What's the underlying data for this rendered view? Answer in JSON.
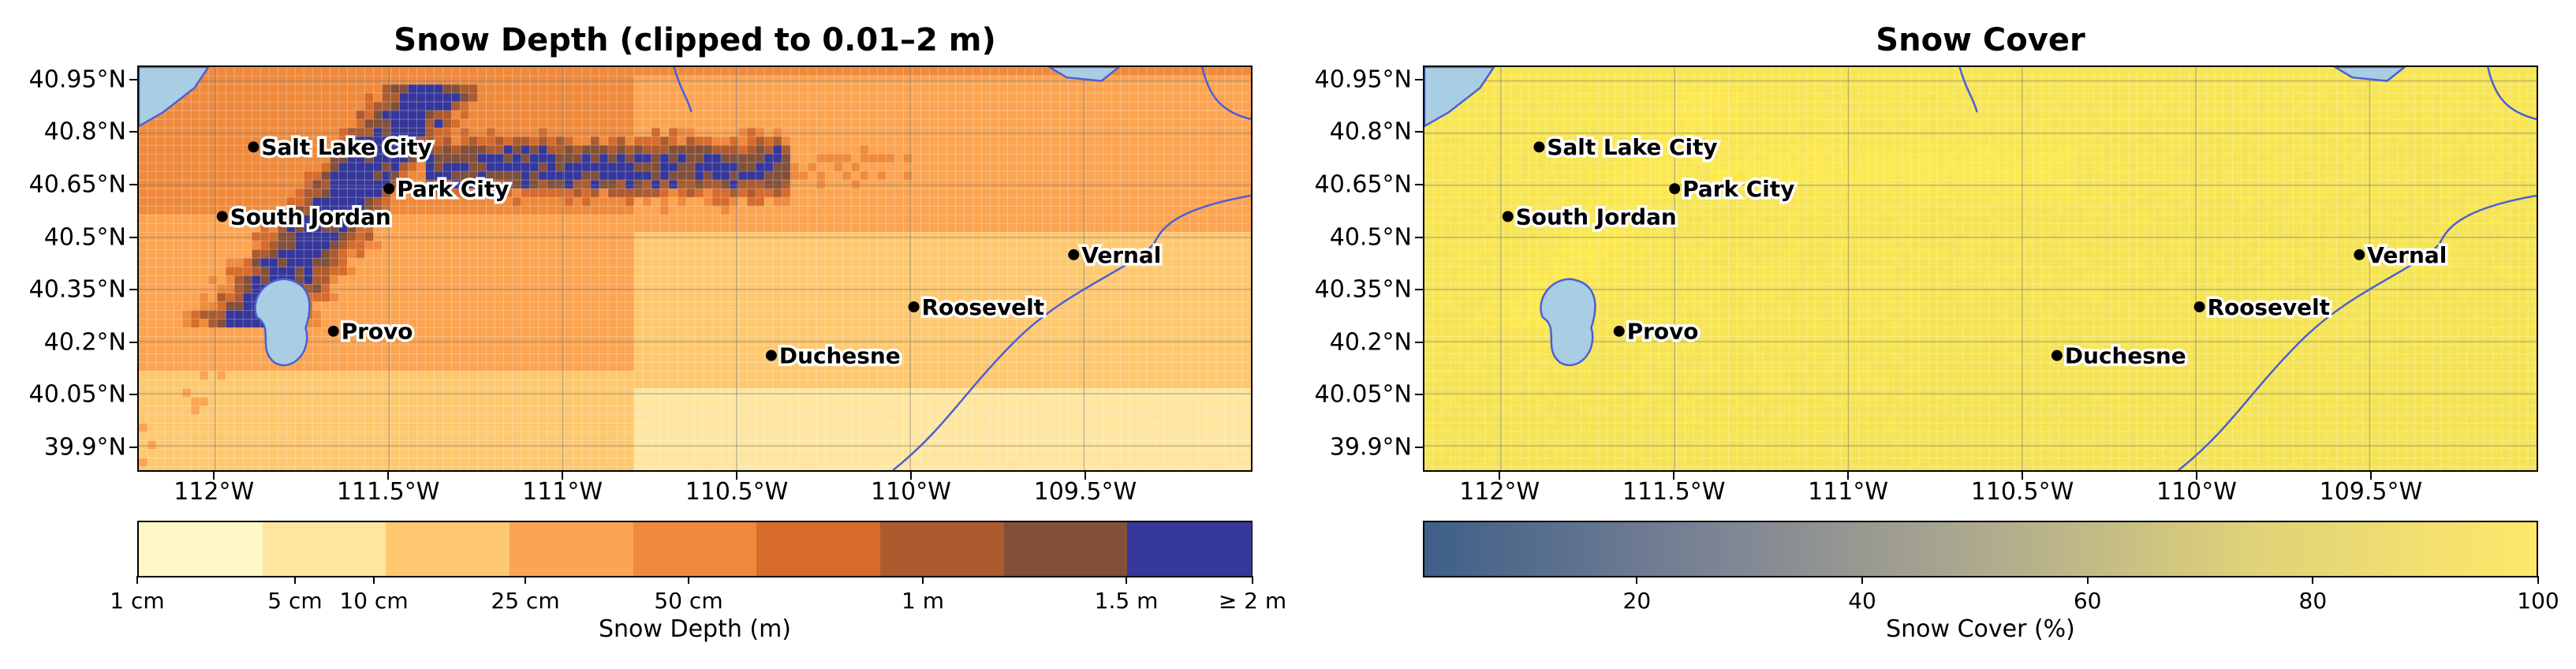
{
  "panels": [
    {
      "title": "Snow Depth (clipped to 0.01–2 m)",
      "colorbar": {
        "label": "Snow Depth (m)",
        "colors": [
          "#fff7c6",
          "#fee6a0",
          "#fdc86f",
          "#fba451",
          "#ef8a3c",
          "#d66b2c",
          "#ad5a2e",
          "#82503a",
          "#36379a"
        ],
        "tick_labels": [
          "1 cm",
          "5 cm",
          "10 cm",
          "25 cm",
          "50 cm",
          "1 m",
          "1.5 m",
          "≥ 2 m"
        ]
      }
    },
    {
      "title": "Snow Cover",
      "colorbar": {
        "label": "Snow Cover (%)",
        "gradient": [
          "#3e5f88",
          "#7a8294",
          "#aeaa8f",
          "#e0d378",
          "#fee869"
        ],
        "tick_labels": [
          "20",
          "40",
          "60",
          "80",
          "100"
        ]
      }
    }
  ],
  "map": {
    "lat_labels": [
      "40.95°N",
      "40.8°N",
      "40.65°N",
      "40.5°N",
      "40.35°N",
      "40.2°N",
      "40.05°N",
      "39.9°N"
    ],
    "lon_labels": [
      "112°W",
      "111.5°W",
      "111°W",
      "110.5°W",
      "110°W",
      "109.5°W"
    ],
    "cities": [
      {
        "name": "Salt Lake City",
        "lon": -111.89,
        "lat": 40.76
      },
      {
        "name": "Park City",
        "lon": -111.5,
        "lat": 40.64
      },
      {
        "name": "South Jordan",
        "lon": -111.98,
        "lat": 40.56
      },
      {
        "name": "Vernal",
        "lon": -109.53,
        "lat": 40.45
      },
      {
        "name": "Roosevelt",
        "lon": -109.99,
        "lat": 40.3
      },
      {
        "name": "Provo",
        "lon": -111.66,
        "lat": 40.23
      },
      {
        "name": "Duchesne",
        "lon": -110.4,
        "lat": 40.16
      }
    ]
  }
}
